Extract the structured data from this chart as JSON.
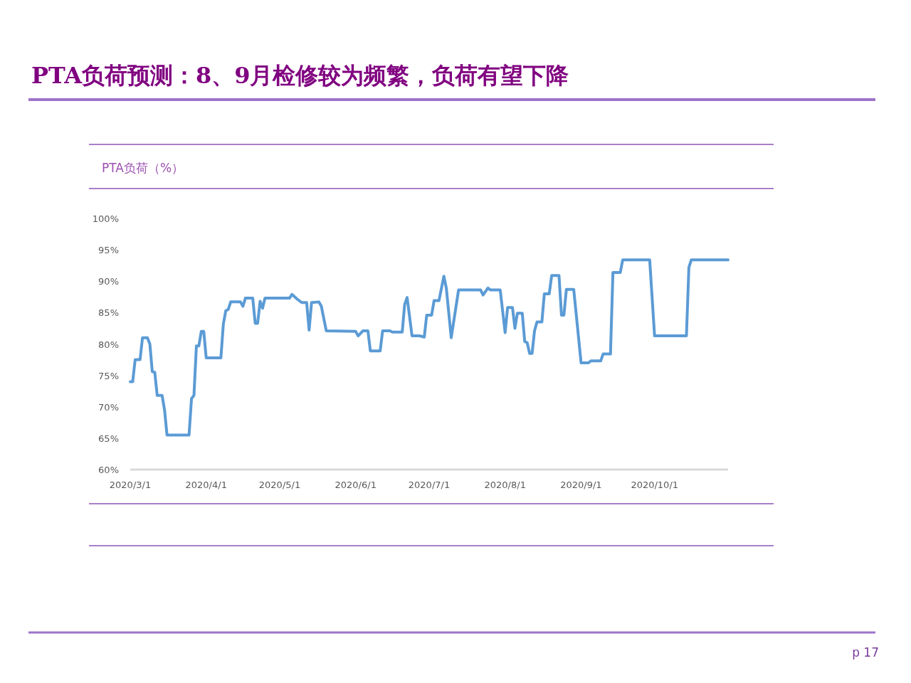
{
  "chart_data": {
    "type": "line",
    "title": "PTA负荷预测：8、9月检修较为频繁，负荷有望下降",
    "subtitle": "PTA负荷（%）",
    "annotations": [
      "p 17"
    ],
    "x": [
      "2020-03-01",
      "2020-03-02",
      "2020-03-03",
      "2020-03-05",
      "2020-03-06",
      "2020-03-08",
      "2020-03-09",
      "2020-03-10",
      "2020-03-11",
      "2020-03-12",
      "2020-03-14",
      "2020-03-15",
      "2020-03-16",
      "2020-03-25",
      "2020-03-26",
      "2020-03-27",
      "2020-03-28",
      "2020-03-29",
      "2020-03-30",
      "2020-03-31",
      "2020-04-01",
      "2020-04-03",
      "2020-04-07",
      "2020-04-08",
      "2020-04-09",
      "2020-04-10",
      "2020-04-11",
      "2020-04-15",
      "2020-04-16",
      "2020-04-17",
      "2020-04-20",
      "2020-04-21",
      "2020-04-22",
      "2020-04-23",
      "2020-04-24",
      "2020-04-25",
      "2020-05-05",
      "2020-05-06",
      "2020-05-08",
      "2020-05-10",
      "2020-05-12",
      "2020-05-13",
      "2020-05-14",
      "2020-05-17",
      "2020-05-18",
      "2020-05-20",
      "2020-06-01",
      "2020-06-02",
      "2020-06-04",
      "2020-06-06",
      "2020-06-07",
      "2020-06-11",
      "2020-06-12",
      "2020-06-15",
      "2020-06-16",
      "2020-06-20",
      "2020-06-21",
      "2020-06-22",
      "2020-06-24",
      "2020-06-27",
      "2020-06-29",
      "2020-06-30",
      "2020-07-02",
      "2020-07-03",
      "2020-07-05",
      "2020-07-07",
      "2020-07-08",
      "2020-07-10",
      "2020-07-13",
      "2020-07-22",
      "2020-07-23",
      "2020-07-25",
      "2020-07-26",
      "2020-07-30",
      "2020-08-01",
      "2020-08-02",
      "2020-08-04",
      "2020-08-05",
      "2020-08-06",
      "2020-08-08",
      "2020-08-09",
      "2020-08-10",
      "2020-08-11",
      "2020-08-12",
      "2020-08-13",
      "2020-08-14",
      "2020-08-16",
      "2020-08-17",
      "2020-08-19",
      "2020-08-20",
      "2020-08-23",
      "2020-08-24",
      "2020-08-25",
      "2020-08-26",
      "2020-08-29",
      "2020-09-01",
      "2020-09-04",
      "2020-09-05",
      "2020-09-09",
      "2020-09-10",
      "2020-09-13",
      "2020-09-14",
      "2020-09-17",
      "2020-09-18",
      "2020-09-29",
      "2020-10-01",
      "2020-10-14",
      "2020-10-15",
      "2020-10-16",
      "2020-10-31"
    ],
    "series": [
      {
        "color": "#5b9bd5",
        "values": [
          74,
          74,
          77.5,
          77.5,
          81,
          81,
          80,
          75.6,
          75.5,
          71.8,
          71.8,
          69.5,
          65.5,
          65.5,
          71.3,
          71.8,
          79.7,
          79.7,
          82,
          82,
          77.8,
          77.8,
          77.8,
          83.2,
          85.3,
          85.5,
          86.7,
          86.7,
          86,
          87.3,
          87.3,
          83.3,
          83.3,
          86.8,
          85.7,
          87.3,
          87.3,
          87.9,
          87.2,
          86.6,
          86.6,
          82.2,
          86.6,
          86.7,
          86,
          82.1,
          82,
          81.3,
          82.1,
          82.1,
          78.9,
          78.9,
          82.1,
          82.1,
          81.9,
          81.9,
          86.3,
          87.4,
          81.3,
          81.3,
          81.1,
          84.6,
          84.6,
          86.9,
          86.9,
          90.8,
          88.9,
          81,
          88.6,
          88.6,
          87.8,
          88.9,
          88.6,
          88.6,
          81.8,
          85.8,
          85.8,
          82.5,
          84.9,
          84.9,
          80.4,
          80.2,
          78.5,
          78.5,
          82.1,
          83.5,
          83.5,
          88,
          88,
          90.9,
          90.9,
          84.6,
          84.6,
          88.7,
          88.7,
          77,
          77,
          77.3,
          77.3,
          78.4,
          78.4,
          91.4,
          91.4,
          93.4,
          93.4,
          81.3,
          81.3,
          92.2,
          93.4,
          93.4
        ]
      }
    ],
    "xlim": [
      "2020-03-01",
      "2020-10-31"
    ],
    "xticks": [
      {
        "value": "2020-03-01",
        "label": "2020/3/1"
      },
      {
        "value": "2020-04-01",
        "label": "2020/4/1"
      },
      {
        "value": "2020-05-01",
        "label": "2020/5/1"
      },
      {
        "value": "2020-06-01",
        "label": "2020/6/1"
      },
      {
        "value": "2020-07-01",
        "label": "2020/7/1"
      },
      {
        "value": "2020-08-01",
        "label": "2020/8/1"
      },
      {
        "value": "2020-09-01",
        "label": "2020/9/1"
      },
      {
        "value": "2020-10-01",
        "label": "2020/10/1"
      }
    ],
    "ylim": [
      60,
      100
    ],
    "yticks": [
      {
        "value": 60,
        "label": "60%"
      },
      {
        "value": 65,
        "label": "65%"
      },
      {
        "value": 70,
        "label": "70%"
      },
      {
        "value": 75,
        "label": "75%"
      },
      {
        "value": 80,
        "label": "80%"
      },
      {
        "value": 85,
        "label": "85%"
      },
      {
        "value": 90,
        "label": "90%"
      },
      {
        "value": 95,
        "label": "95%"
      },
      {
        "value": 100,
        "label": "100%"
      }
    ],
    "grid": false
  }
}
